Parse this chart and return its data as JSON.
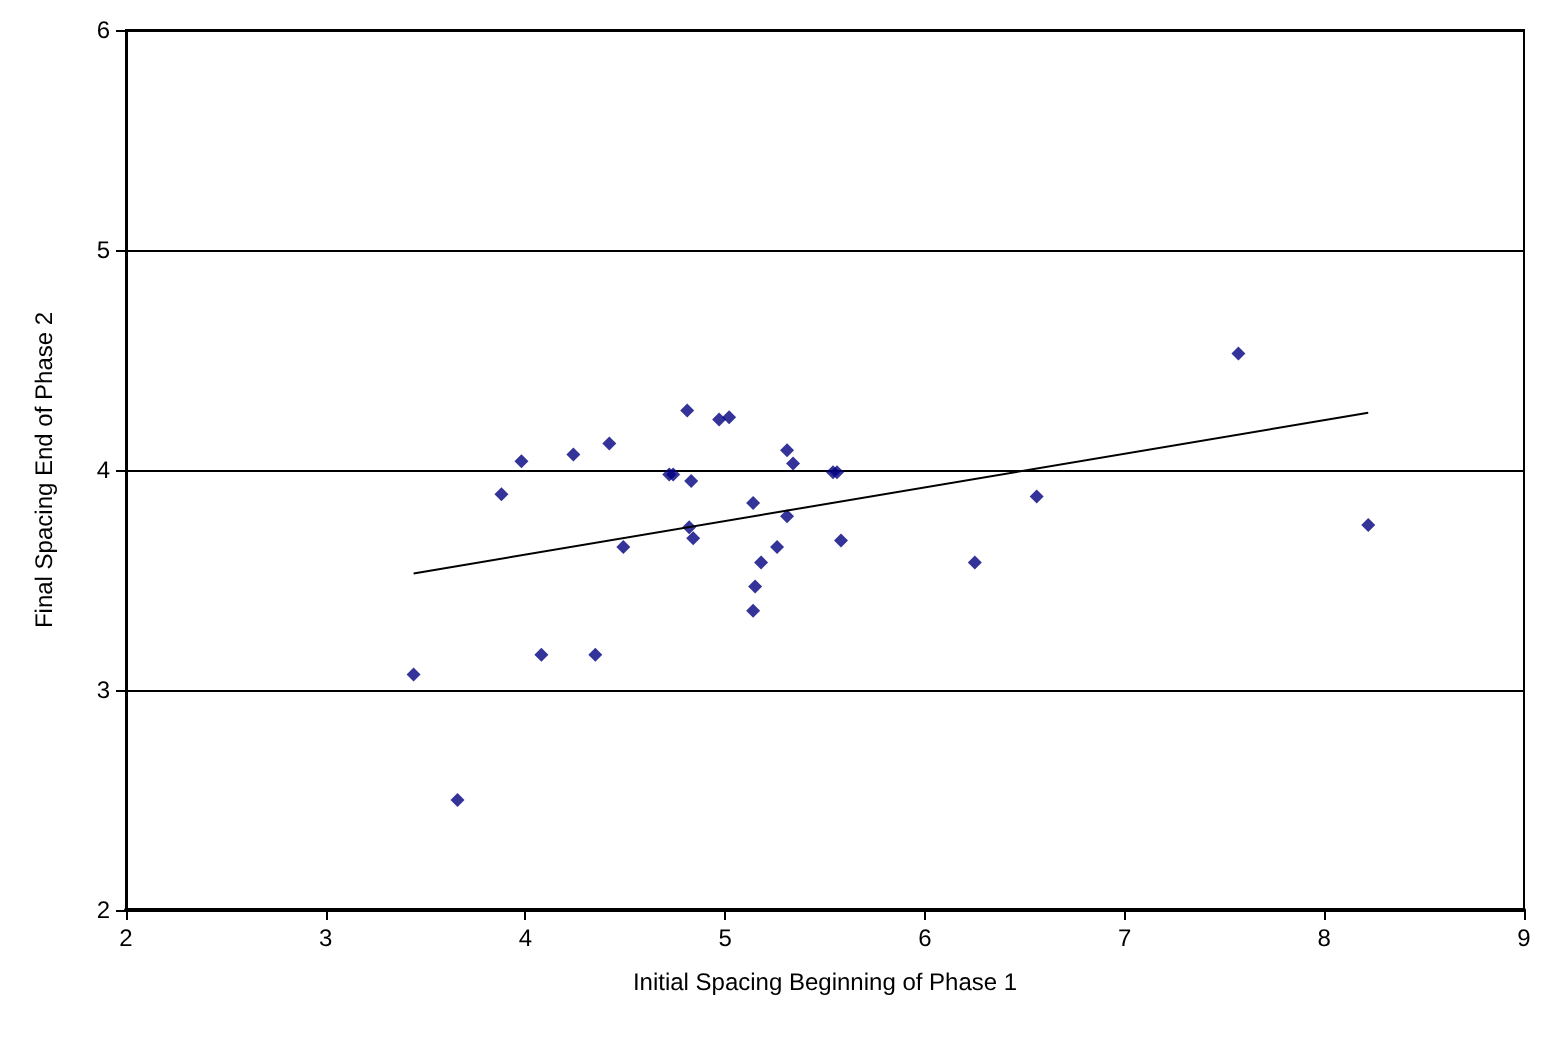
{
  "chart_data": {
    "type": "scatter",
    "xlabel": "Initial Spacing Beginning of Phase 1",
    "ylabel": "Final Spacing End of Phase 2",
    "xlim": [
      2,
      9
    ],
    "xticks": [
      2,
      3,
      4,
      5,
      6,
      7,
      8,
      9
    ],
    "ylim": [
      2,
      6
    ],
    "yticks": [
      2,
      3,
      4,
      5,
      6
    ],
    "grid": "y",
    "marker": "diamond",
    "series": [
      {
        "color": "#000080",
        "x": [
          3.44,
          3.66,
          3.88,
          3.98,
          4.08,
          4.24,
          4.35,
          4.42,
          4.49,
          4.72,
          4.74,
          4.81,
          4.83,
          4.82,
          4.84,
          4.97,
          5.02,
          5.14,
          5.14,
          5.15,
          5.18,
          5.26,
          5.31,
          5.31,
          5.34,
          5.54,
          5.56,
          5.58,
          6.25,
          6.56,
          7.57,
          8.22
        ],
        "values": [
          3.07,
          2.5,
          3.89,
          4.04,
          3.16,
          4.07,
          3.16,
          4.12,
          3.65,
          3.98,
          3.98,
          4.27,
          3.95,
          3.74,
          3.69,
          4.23,
          4.24,
          3.85,
          3.36,
          3.47,
          3.58,
          3.65,
          4.09,
          3.79,
          4.03,
          3.99,
          3.99,
          3.68,
          3.58,
          3.88,
          4.53,
          3.75
        ]
      },
      {
        "type": "line",
        "color": "#000000",
        "marker": "none",
        "x": [
          3.44,
          8.22
        ],
        "values": [
          3.53,
          4.26
        ]
      }
    ]
  }
}
